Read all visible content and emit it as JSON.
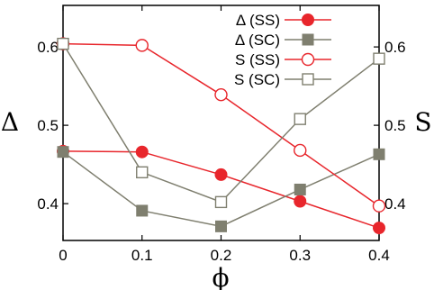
{
  "chart_data": {
    "type": "line",
    "x": [
      0,
      0.1,
      0.2,
      0.3,
      0.4
    ],
    "x_tick_labels": [
      "0",
      "0.1",
      "0.2",
      "0.3",
      "0.4"
    ],
    "xlim": [
      0,
      0.4
    ],
    "xlabel": "ϕ",
    "ylabel_left": "Δ",
    "ylabel_right": "S",
    "ylim_left": [
      0.353,
      0.653
    ],
    "ylim_right": [
      0.353,
      0.653
    ],
    "y_ticks_left": [
      0.4,
      0.5,
      0.6
    ],
    "y_tick_labels_left": [
      "0.4",
      "0.5",
      "0.6"
    ],
    "y_ticks_right": [
      0.4,
      0.5,
      0.6
    ],
    "y_tick_labels_right": [
      "0.4",
      "0.5",
      "0.6"
    ],
    "grid": false,
    "legend_position": "top-right",
    "series": [
      {
        "name": "Δ (SS)",
        "axis": "left",
        "color": "#e8262c",
        "marker": "filled-circle",
        "values": [
          0.467,
          0.466,
          0.437,
          0.403,
          0.369
        ]
      },
      {
        "name": "Δ (SC)",
        "axis": "left",
        "color": "#7f7f6f",
        "marker": "filled-square",
        "values": [
          0.466,
          0.391,
          0.371,
          0.418,
          0.463
        ]
      },
      {
        "name": "S (SS)",
        "axis": "right",
        "color": "#e8262c",
        "marker": "open-circle",
        "values": [
          0.604,
          0.602,
          0.539,
          0.468,
          0.397
        ]
      },
      {
        "name": "S (SC)",
        "axis": "right",
        "color": "#7f7f6f",
        "marker": "open-square",
        "values": [
          0.604,
          0.44,
          0.402,
          0.508,
          0.585
        ]
      }
    ]
  }
}
